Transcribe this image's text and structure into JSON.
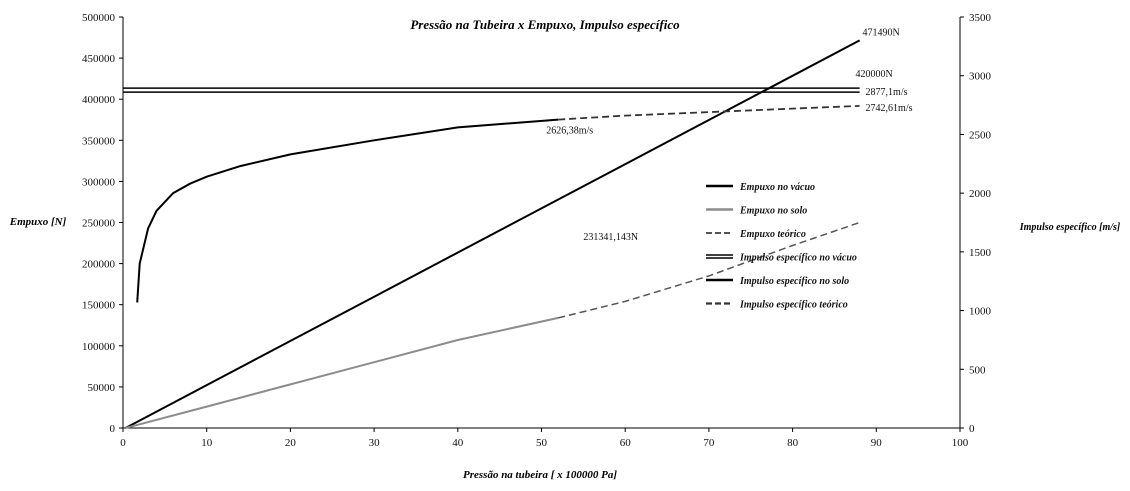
{
  "chart_data": {
    "type": "line",
    "title": "Pressão na Tubeira x Empuxo, Impulso específico",
    "xlabel": "Pressão na tubeira [ x 100000 Pa]",
    "ylabel": "Empuxo [N]",
    "y2label": "Impulso específico [m/s]",
    "xlim": [
      0,
      100
    ],
    "ylim": [
      0,
      500000
    ],
    "y2lim": [
      0,
      3500
    ],
    "x_ticks": [
      "0",
      "10",
      "20",
      "30",
      "40",
      "50",
      "60",
      "70",
      "80",
      "90",
      "100"
    ],
    "y_ticks": [
      "0",
      "50000",
      "100000",
      "150000",
      "200000",
      "250000",
      "300000",
      "350000",
      "400000",
      "450000",
      "500000"
    ],
    "y2_ticks": [
      "0",
      "500",
      "1000",
      "1500",
      "2000",
      "2500",
      "3000",
      "3500"
    ],
    "grid": false,
    "legend_position": "right",
    "series": [
      {
        "name": "Empuxo no vácuo",
        "axis": "left",
        "color": "#000000",
        "style": "solid",
        "width": 2,
        "points": [
          [
            0.3,
            0
          ],
          [
            88,
            471490
          ]
        ]
      },
      {
        "name": "Empuxo no solo",
        "axis": "left",
        "color": "#8c8c8c",
        "style": "solid",
        "width": 2,
        "points": [
          [
            0.3,
            0
          ],
          [
            10,
            26000
          ],
          [
            20,
            53000
          ],
          [
            30,
            80000
          ],
          [
            40,
            107000
          ],
          [
            52,
            134000
          ]
        ]
      },
      {
        "name": "Empuxo teórico",
        "axis": "left",
        "color": "#555555",
        "style": "dashed",
        "width": 1.5,
        "points": [
          [
            52,
            134000
          ],
          [
            60,
            154000
          ],
          [
            70,
            185000
          ],
          [
            80,
            222000
          ],
          [
            88,
            250000
          ]
        ]
      },
      {
        "name": "Impulso específico no vácuo",
        "axis": "right",
        "color": "#000000",
        "style": "double",
        "width": 1.5,
        "points": [
          [
            0,
            2877.1
          ],
          [
            88,
            2877.1
          ]
        ]
      },
      {
        "name": "Impulso específico no solo",
        "axis": "right",
        "color": "#000000",
        "style": "solid",
        "width": 2,
        "points": [
          [
            1.7,
            1070
          ],
          [
            2,
            1400
          ],
          [
            3,
            1700
          ],
          [
            4,
            1850
          ],
          [
            6,
            2000
          ],
          [
            8,
            2080
          ],
          [
            10,
            2140
          ],
          [
            14,
            2230
          ],
          [
            20,
            2330
          ],
          [
            30,
            2450
          ],
          [
            40,
            2560
          ],
          [
            52,
            2626.38
          ]
        ]
      },
      {
        "name": "Impulso específico teórico",
        "axis": "right",
        "color": "#333333",
        "style": "dashed",
        "width": 1.8,
        "points": [
          [
            52,
            2626.38
          ],
          [
            60,
            2660
          ],
          [
            70,
            2690
          ],
          [
            80,
            2720
          ],
          [
            88,
            2742.61
          ]
        ]
      }
    ],
    "annotations": [
      {
        "text": "471490N",
        "x": 88,
        "y": 471490,
        "axis": "left"
      },
      {
        "text": "420000N",
        "x": 88,
        "y": 420000,
        "axis": "left"
      },
      {
        "text": "2877,1m/s",
        "x": 88,
        "y": 2877.1,
        "axis": "right"
      },
      {
        "text": "2742,61m/s",
        "x": 88,
        "y": 2742.61,
        "axis": "right"
      },
      {
        "text": "2626,38m/s",
        "x": 52,
        "y": 2626.38,
        "axis": "right"
      },
      {
        "text": "231341,143N",
        "x": 55,
        "y": 231341.143,
        "axis": "left"
      }
    ]
  }
}
